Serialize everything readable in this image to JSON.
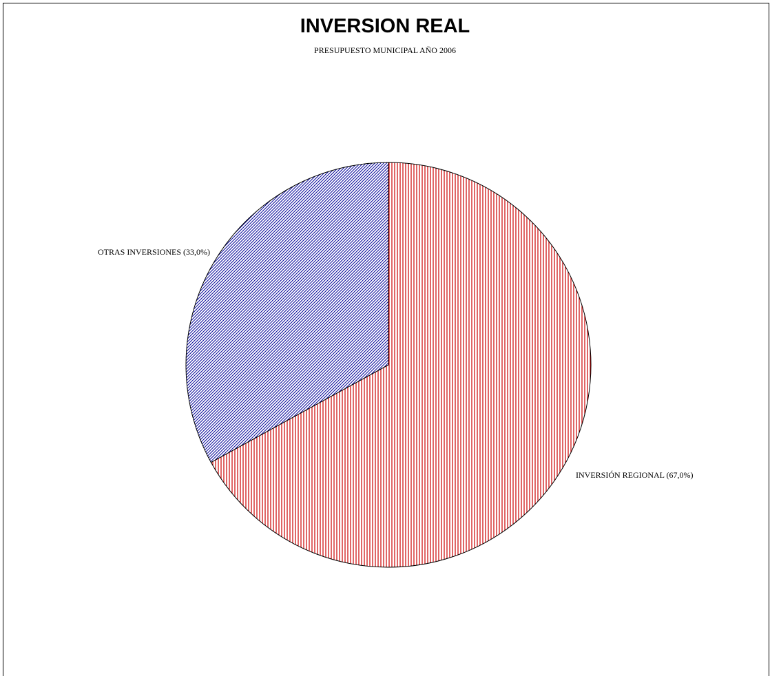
{
  "chart_data": {
    "type": "pie",
    "title": "INVERSION REAL",
    "subtitle": "PRESUPUESTO MUNICIPAL AÑO 2006",
    "slices": [
      {
        "label": "INVERSIÓN REGIONAL (67,0%)",
        "value": 67.0,
        "color": "#cc0000",
        "pattern": "vertical-lines"
      },
      {
        "label": "OTRAS INVERSIONES (33,0%)",
        "value": 33.0,
        "color": "#000099",
        "pattern": "diagonal-lines"
      }
    ],
    "start": "12 o'clock",
    "direction": "clockwise",
    "legend": "none"
  }
}
